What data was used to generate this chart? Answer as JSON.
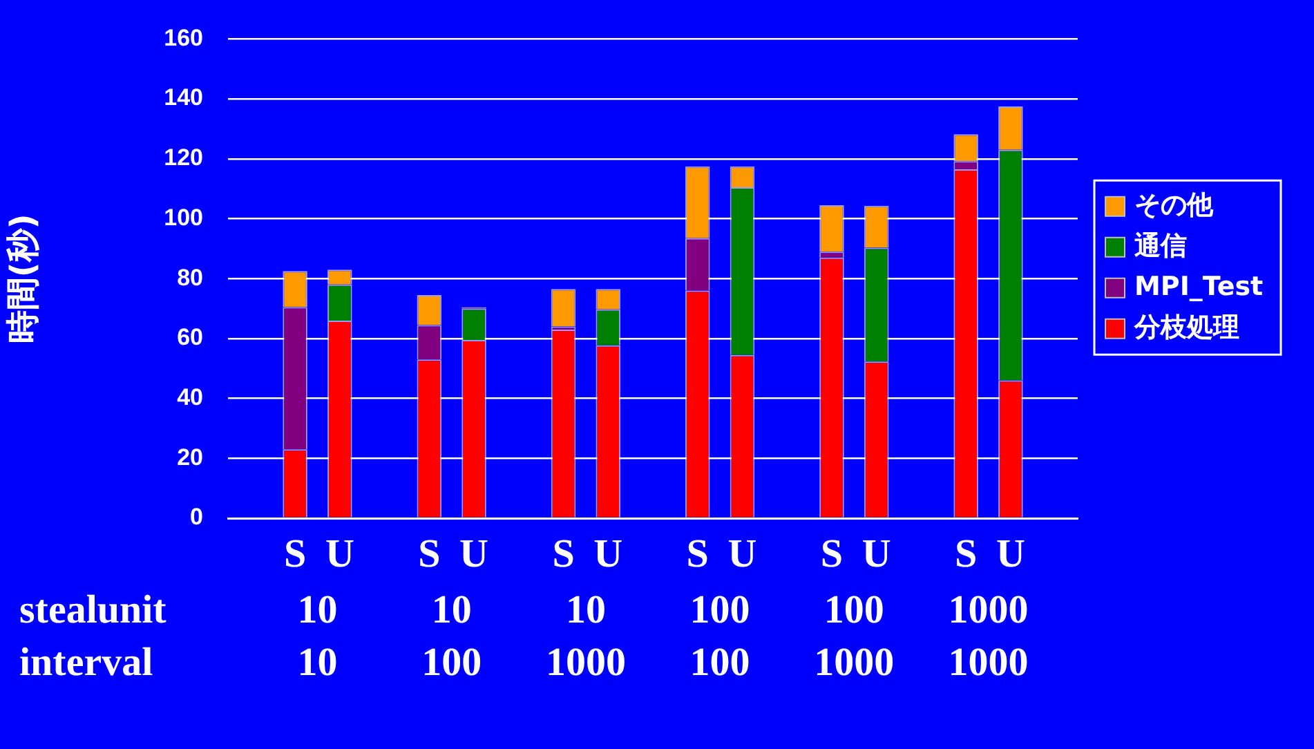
{
  "chart_data": {
    "type": "bar",
    "stacked": true,
    "ylabel": "時間(秒)",
    "categories": [
      null,
      "S",
      "U",
      null,
      "S",
      "U",
      null,
      "S",
      "U",
      null,
      "S",
      "U",
      null,
      "S",
      "U",
      null,
      "S",
      "U",
      null
    ],
    "series": [
      {
        "name": "分枝処理",
        "color": "#ff0000",
        "values": [
          null,
          23,
          66,
          null,
          53,
          59.5,
          null,
          63,
          57.7,
          null,
          76,
          54.5,
          null,
          87,
          52.3,
          null,
          116.5,
          46,
          null
        ]
      },
      {
        "name": "MPI_Test",
        "color": "#800080",
        "values": [
          null,
          47.5,
          null,
          null,
          11.5,
          null,
          null,
          1,
          null,
          null,
          17.5,
          null,
          null,
          2,
          null,
          null,
          2.7,
          null,
          null
        ]
      },
      {
        "name": "通信",
        "color": "#008000",
        "values": [
          null,
          null,
          12,
          null,
          null,
          10.5,
          null,
          null,
          12,
          null,
          null,
          56,
          null,
          null,
          38,
          null,
          null,
          77,
          null
        ]
      },
      {
        "name": "その他",
        "color": "#ff9900",
        "values": [
          null,
          12,
          5,
          null,
          10,
          0.5,
          null,
          12.5,
          6.8,
          null,
          24,
          7,
          null,
          15.5,
          14,
          null,
          9,
          14.5,
          null
        ]
      }
    ],
    "ylim": [
      0,
      160
    ],
    "yticks": [
      0,
      20,
      40,
      60,
      80,
      100,
      120,
      140,
      160
    ],
    "grid": "y",
    "legend": "right",
    "annotations": [
      "stealunit",
      "interval",
      "10",
      "10",
      "10",
      "100",
      "10",
      "1000",
      "100",
      "100",
      "100",
      "1000",
      "1000",
      "1000"
    ]
  }
}
